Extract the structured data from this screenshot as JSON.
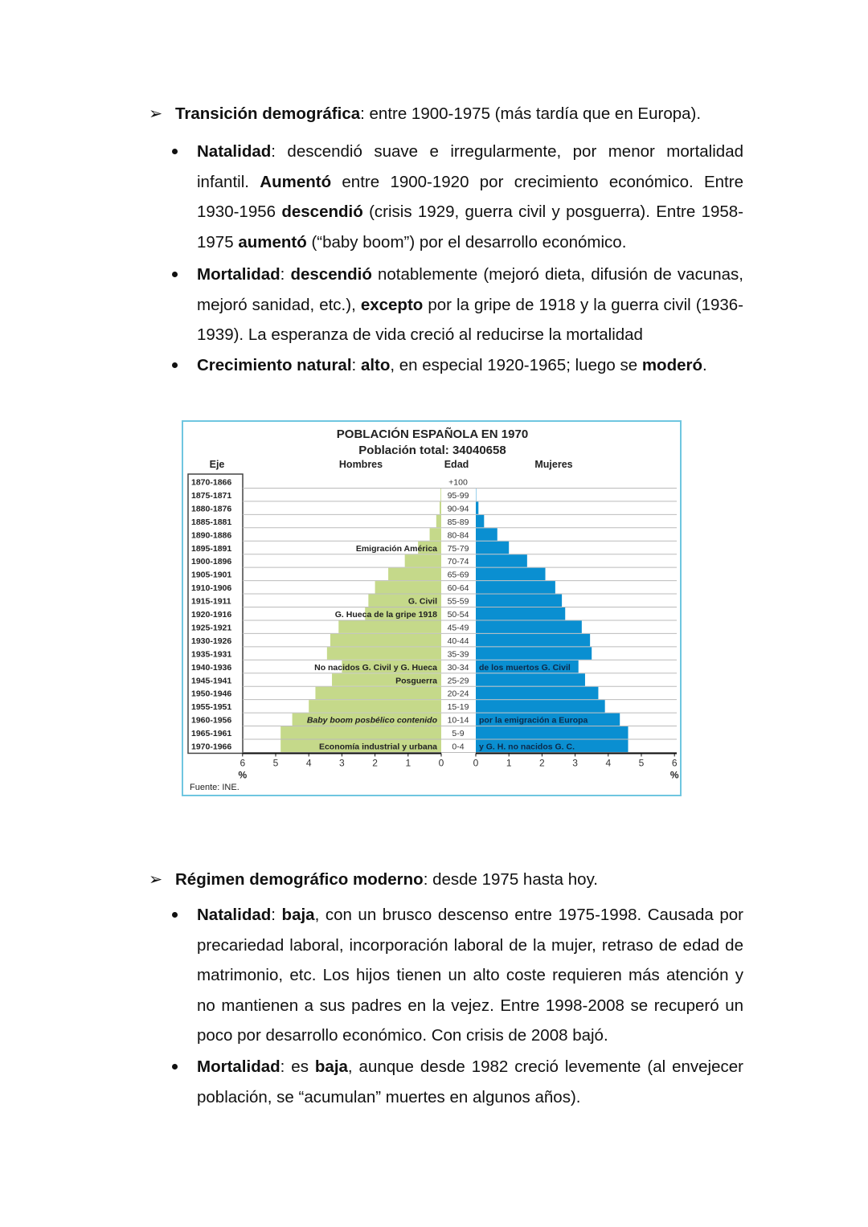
{
  "section1": {
    "heading": [
      {
        "t": "Transición demográfica",
        "b": true
      },
      {
        "t": ": entre 1900-1975 (más tardía que en Europa).",
        "b": false
      }
    ],
    "bullets": [
      [
        {
          "t": "Natalidad",
          "b": true
        },
        {
          "t": ": descendió suave e irregularmente, por menor mortalidad infantil. ",
          "b": false
        },
        {
          "t": "Aumentó",
          "b": true
        },
        {
          "t": " entre 1900-1920 por crecimiento económico. Entre 1930-1956 ",
          "b": false
        },
        {
          "t": "descendió",
          "b": true
        },
        {
          "t": " (crisis 1929, guerra civil y posguerra). Entre 1958-1975 ",
          "b": false
        },
        {
          "t": "aumentó",
          "b": true
        },
        {
          "t": " (“baby boom”) por el desarrollo económico.",
          "b": false
        }
      ],
      [
        {
          "t": "Mortalidad",
          "b": true
        },
        {
          "t": ": ",
          "b": false
        },
        {
          "t": "descendió",
          "b": true
        },
        {
          "t": " notablemente (mejoró dieta, difusión de vacunas, mejoró sanidad, etc.), ",
          "b": false
        },
        {
          "t": "excepto",
          "b": true
        },
        {
          "t": " por la gripe de 1918 y la guerra civil (1936-1939). La esperanza de vida creció al reducirse la mortalidad",
          "b": false
        }
      ],
      [
        {
          "t": "Crecimiento natural",
          "b": true
        },
        {
          "t": ": ",
          "b": false
        },
        {
          "t": "alto",
          "b": true
        },
        {
          "t": ", en especial 1920-1965; luego se ",
          "b": false
        },
        {
          "t": "moderó",
          "b": true
        },
        {
          "t": ".",
          "b": false
        }
      ]
    ]
  },
  "chart_data": {
    "type": "bar",
    "orientation": "population-pyramid",
    "title": "POBLACIÓN ESPAÑOLA EN 1970",
    "subtitle": "Población total: 34040658",
    "axis_header": "Eje",
    "left_header": "Hombres",
    "center_header": "Edad",
    "right_header": "Mujeres",
    "categories": [
      "+100",
      "95-99",
      "90-94",
      "85-89",
      "80-84",
      "75-79",
      "70-74",
      "65-69",
      "60-64",
      "55-59",
      "50-54",
      "45-49",
      "40-44",
      "35-39",
      "30-34",
      "25-29",
      "20-24",
      "15-19",
      "10-14",
      "5-9",
      "0-4"
    ],
    "birth_years": [
      "1870-1866",
      "1875-1871",
      "1880-1876",
      "1885-1881",
      "1890-1886",
      "1895-1891",
      "1900-1896",
      "1905-1901",
      "1910-1906",
      "1915-1911",
      "1920-1916",
      "1925-1921",
      "1930-1926",
      "1935-1931",
      "1940-1936",
      "1945-1941",
      "1950-1946",
      "1955-1951",
      "1960-1956",
      "1965-1961",
      "1970-1966"
    ],
    "series": [
      {
        "name": "Hombres",
        "color": "#c5d98a",
        "values": [
          0,
          0.02,
          0.05,
          0.15,
          0.35,
          0.7,
          1.1,
          1.6,
          2.0,
          2.2,
          2.3,
          3.1,
          3.35,
          3.45,
          3.0,
          3.3,
          3.8,
          4.0,
          4.5,
          4.85,
          4.85
        ]
      },
      {
        "name": "Mujeres",
        "color": "#0a8fd1",
        "values": [
          0,
          0.01,
          0.08,
          0.25,
          0.65,
          1.0,
          1.55,
          2.1,
          2.4,
          2.6,
          2.7,
          3.2,
          3.45,
          3.5,
          3.1,
          3.3,
          3.7,
          3.9,
          4.35,
          4.6,
          4.6
        ]
      }
    ],
    "xlim": [
      0,
      6
    ],
    "xticks": [
      "6",
      "5",
      "4",
      "3",
      "2",
      "1",
      "0",
      "0",
      "1",
      "2",
      "3",
      "4",
      "5",
      "6"
    ],
    "xunit": "%",
    "annotations_left": [
      {
        "age": "75-79",
        "text": "Emigración América"
      },
      {
        "age": "55-59",
        "text": "G. Civil"
      },
      {
        "age": "50-54",
        "text": "G. Hueca de la gripe 1918"
      },
      {
        "age": "30-34",
        "text": "No nacidos G. Civil y G. Hueca"
      },
      {
        "age": "25-29",
        "text": "Posguerra"
      },
      {
        "age": "10-14",
        "text": "Baby boom posbélico contenido"
      },
      {
        "age": "0-4",
        "text": "Economía industrial y urbana"
      }
    ],
    "annotations_right": [
      {
        "age": "30-34",
        "text": "de los muertos G. Civil"
      },
      {
        "age": "10-14",
        "text": "por la emigración a Europa"
      },
      {
        "age": "0-4",
        "text": "y G. H. no nacidos G. C."
      }
    ],
    "source": "Fuente: INE."
  },
  "section2": {
    "heading": [
      {
        "t": "Régimen demográfico moderno",
        "b": true
      },
      {
        "t": ": desde 1975 hasta hoy.",
        "b": false
      }
    ],
    "bullets": [
      [
        {
          "t": "Natalidad",
          "b": true
        },
        {
          "t": ": ",
          "b": false
        },
        {
          "t": "baja",
          "b": true
        },
        {
          "t": ", con un brusco descenso entre 1975-1998. Causada por precariedad laboral, incorporación laboral de la mujer, retraso de edad de matrimonio, etc. Los hijos tienen un alto coste requieren más atención y no mantienen a sus padres en la vejez. Entre 1998-2008 se recuperó un poco por desarrollo económico. Con crisis de 2008 bajó.",
          "b": false
        }
      ],
      [
        {
          "t": "Mortalidad",
          "b": true
        },
        {
          "t": ": es ",
          "b": false
        },
        {
          "t": "baja",
          "b": true
        },
        {
          "t": ", aunque desde 1982 creció levemente (al envejecer población, se “acumulan” muertes en algunos años).",
          "b": false
        }
      ]
    ]
  }
}
